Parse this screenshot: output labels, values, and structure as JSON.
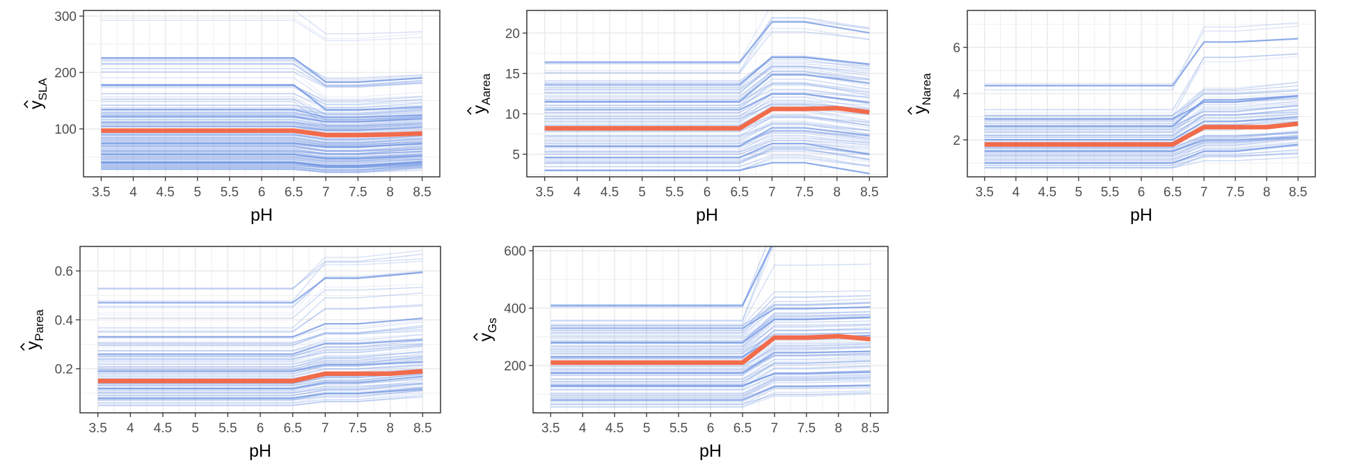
{
  "figure": {
    "description_colors": {
      "ice": "#6f94e2",
      "pdp": "#f26b4b",
      "grid": "#ebebeb",
      "frame": "#333333"
    }
  },
  "chart_data": [
    {
      "type": "line",
      "title": "",
      "xlabel": "pH",
      "ylabel_base": "y",
      "ylabel_sub": "SLA",
      "x": [
        3.5,
        4,
        4.5,
        5,
        5.5,
        6,
        6.5,
        7,
        7.5,
        8,
        8.5
      ],
      "x_tick_labels": [
        "3.5",
        "4",
        "4.5",
        "5",
        "5.5",
        "6",
        "6.5",
        "7",
        "7.5",
        "8",
        "8.5"
      ],
      "ylim": [
        15,
        310
      ],
      "yticks": [
        100,
        200,
        300
      ],
      "y_tick_labels": [
        "100",
        "200",
        "300"
      ],
      "pdp": [
        97,
        97,
        97,
        97,
        97,
        97,
        97,
        89,
        89,
        90,
        92
      ],
      "ice_low_base": [
        28,
        30,
        32,
        33,
        35,
        36,
        38,
        40,
        41,
        42,
        45,
        47,
        50,
        52,
        55,
        58,
        60,
        62,
        65,
        68,
        70,
        72,
        75,
        78,
        80,
        83,
        85,
        88,
        90,
        93,
        95,
        98,
        100,
        103,
        105,
        108,
        110,
        113,
        116,
        120,
        123,
        126,
        130,
        135,
        140
      ],
      "ice_high_base": [
        150,
        160,
        175,
        178,
        195,
        210,
        222,
        228,
        305
      ],
      "ice_after_shift_low": -8,
      "ice_after_shift_high": -25,
      "ice_end_drift": 3,
      "emphasis_base": [
        40,
        55,
        75,
        122,
        134,
        178,
        226
      ]
    },
    {
      "type": "line",
      "title": "",
      "xlabel": "pH",
      "ylabel_base": "y",
      "ylabel_sub": "Aarea",
      "x": [
        3.5,
        4,
        4.5,
        5,
        5.5,
        6,
        6.5,
        7,
        7.5,
        8,
        8.5
      ],
      "x_tick_labels": [
        "3.5",
        "4",
        "4.5",
        "5",
        "5.5",
        "6",
        "6.5",
        "7",
        "7.5",
        "8",
        "8.5"
      ],
      "ylim": [
        2.2,
        22.8
      ],
      "yticks": [
        5,
        10,
        15,
        20
      ],
      "y_tick_labels": [
        "5",
        "10",
        "15",
        "20"
      ],
      "pdp": [
        8.2,
        8.2,
        8.2,
        8.2,
        8.2,
        8.2,
        8.2,
        10.6,
        10.6,
        10.7,
        10.2
      ],
      "ice_low_base": [
        3.0,
        3.4,
        3.8,
        4.2,
        4.6,
        5.0,
        5.4,
        5.8,
        6.2,
        6.6,
        7.0,
        7.4,
        7.8,
        8.2,
        8.6,
        9.0,
        9.4,
        9.8,
        10.2,
        10.6,
        11.0,
        11.4,
        11.8,
        12.2,
        12.6,
        13.0,
        13.4,
        13.8
      ],
      "ice_high_base": [
        15.0,
        16.4
      ],
      "ice_after_shift_low": 2.2,
      "ice_after_shift_high": 4.4,
      "ice_end_drift": -0.5,
      "emphasis_base": [
        3.0,
        4.6,
        6.0,
        10.5,
        11.5,
        13.6,
        16.4
      ]
    },
    {
      "type": "line",
      "title": "",
      "xlabel": "pH",
      "ylabel_base": "y",
      "ylabel_sub": "Narea",
      "x": [
        3.5,
        4,
        4.5,
        5,
        5.5,
        6,
        6.5,
        7,
        7.5,
        8,
        8.5
      ],
      "x_tick_labels": [
        "3.5",
        "4",
        "4.5",
        "5",
        "5.5",
        "6",
        "6.5",
        "7",
        "7.5",
        "8",
        "8.5"
      ],
      "ylim": [
        0.4,
        7.6
      ],
      "yticks": [
        2,
        4,
        6
      ],
      "y_tick_labels": [
        "2",
        "4",
        "6"
      ],
      "pdp": [
        1.8,
        1.8,
        1.8,
        1.8,
        1.8,
        1.8,
        1.8,
        2.55,
        2.55,
        2.55,
        2.7
      ],
      "ice_low_base": [
        0.8,
        0.9,
        1.0,
        1.1,
        1.2,
        1.3,
        1.4,
        1.5,
        1.6,
        1.7,
        1.8,
        1.9,
        2.0,
        2.1,
        2.2,
        2.3,
        2.4,
        2.5,
        2.6,
        2.7,
        2.8,
        2.9,
        3.0
      ],
      "ice_high_base": [
        3.2,
        4.35
      ],
      "ice_after_shift_low": 0.7,
      "ice_after_shift_high": 1.8,
      "ice_end_drift": 0.1,
      "emphasis_base": [
        1.0,
        1.5,
        2.0,
        2.6,
        2.9,
        4.35
      ]
    },
    {
      "type": "line",
      "title": "",
      "xlabel": "pH",
      "ylabel_base": "y",
      "ylabel_sub": "Parea",
      "x": [
        3.5,
        4,
        4.5,
        5,
        5.5,
        6,
        6.5,
        7,
        7.5,
        8,
        8.5
      ],
      "x_tick_labels": [
        "3.5",
        "4",
        "4.5",
        "5",
        "5.5",
        "6",
        "6.5",
        "7",
        "7.5",
        "8",
        "8.5"
      ],
      "ylim": [
        0.02,
        0.7
      ],
      "yticks": [
        0.2,
        0.4,
        0.6
      ],
      "y_tick_labels": [
        "0.2",
        "0.4",
        "0.6"
      ],
      "pdp": [
        0.15,
        0.15,
        0.15,
        0.15,
        0.15,
        0.15,
        0.15,
        0.18,
        0.18,
        0.18,
        0.19
      ],
      "ice_low_base": [
        0.05,
        0.06,
        0.07,
        0.08,
        0.09,
        0.1,
        0.11,
        0.12,
        0.13,
        0.14,
        0.15,
        0.16,
        0.17,
        0.18,
        0.19,
        0.2,
        0.21,
        0.22,
        0.23,
        0.24,
        0.25,
        0.27,
        0.29,
        0.31,
        0.33
      ],
      "ice_high_base": [
        0.36,
        0.41,
        0.47,
        0.52
      ],
      "ice_after_shift_low": 0.03,
      "ice_after_shift_high": 0.09,
      "ice_end_drift": 0.01,
      "emphasis_base": [
        0.08,
        0.12,
        0.19,
        0.26,
        0.33,
        0.47
      ]
    },
    {
      "type": "line",
      "title": "",
      "xlabel": "pH",
      "ylabel_base": "y",
      "ylabel_sub": "Gs",
      "x": [
        3.5,
        4,
        4.5,
        5,
        5.5,
        6,
        6.5,
        7,
        7.5,
        8,
        8.5
      ],
      "x_tick_labels": [
        "3.5",
        "4",
        "4.5",
        "5",
        "5.5",
        "6",
        "6.5",
        "7",
        "7.5",
        "8",
        "8.5"
      ],
      "ylim": [
        35,
        615
      ],
      "yticks": [
        200,
        400,
        600
      ],
      "y_tick_labels": [
        "200",
        "400",
        "600"
      ],
      "pdp": [
        210,
        210,
        210,
        210,
        210,
        210,
        210,
        297,
        297,
        302,
        292
      ],
      "ice_low_base": [
        55,
        65,
        75,
        85,
        95,
        105,
        115,
        125,
        135,
        145,
        155,
        165,
        175,
        185,
        195,
        205,
        215,
        225,
        235,
        245,
        255,
        265,
        275,
        285,
        295,
        305,
        315,
        325,
        335
      ],
      "ice_high_base": [
        350,
        410
      ],
      "ice_after_shift_low": 70,
      "ice_after_shift_high": 172,
      "ice_end_drift": 3,
      "emphasis_base": [
        80,
        130,
        175,
        230,
        280,
        330,
        410
      ]
    }
  ]
}
